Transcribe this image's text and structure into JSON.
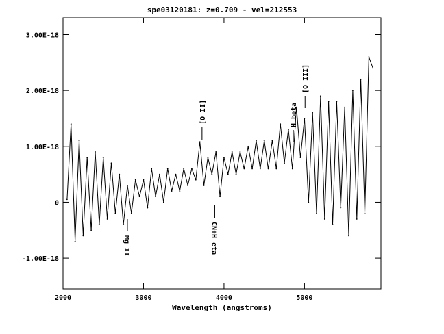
{
  "chart_data": {
    "type": "line",
    "title": "spe03120181: z=0.709 - vel=212553",
    "xlabel": "Wavelength (angstroms)",
    "ylabel": "",
    "xlim": [
      2000,
      5950
    ],
    "ylim": [
      -1.55e-18,
      3.3e-18
    ],
    "x_ticks": [
      {
        "value": 2000,
        "label": "2000"
      },
      {
        "value": 3000,
        "label": "3000"
      },
      {
        "value": 4000,
        "label": "4000"
      },
      {
        "value": 5000,
        "label": "5000"
      }
    ],
    "y_ticks": [
      {
        "value": 3e-18,
        "label": "3.00E-18"
      },
      {
        "value": 2e-18,
        "label": "2.00E-18"
      },
      {
        "value": 1e-18,
        "label": "1.00E-18"
      },
      {
        "value": 0,
        "label": "0"
      },
      {
        "value": -1e-18,
        "label": "-1.00E-18"
      }
    ],
    "grid": false,
    "series": [
      {
        "color": "#000000",
        "x": [
          2050,
          2100,
          2150,
          2200,
          2250,
          2300,
          2350,
          2400,
          2450,
          2500,
          2550,
          2600,
          2650,
          2700,
          2750,
          2800,
          2850,
          2900,
          2950,
          3000,
          3050,
          3100,
          3150,
          3200,
          3250,
          3300,
          3350,
          3400,
          3450,
          3500,
          3550,
          3600,
          3650,
          3700,
          3750,
          3800,
          3850,
          3900,
          3950,
          4000,
          4050,
          4100,
          4150,
          4200,
          4250,
          4300,
          4350,
          4400,
          4450,
          4500,
          4550,
          4600,
          4650,
          4700,
          4750,
          4800,
          4850,
          4900,
          4950,
          5000,
          5050,
          5100,
          5150,
          5200,
          5250,
          5300,
          5350,
          5400,
          5450,
          5500,
          5550,
          5600,
          5650,
          5700,
          5750,
          5800,
          5850
        ],
        "y": [
          5e-20,
          1.4e-18,
          -7e-19,
          1.1e-18,
          -6e-19,
          8e-19,
          -5e-19,
          9e-19,
          -4e-19,
          8e-19,
          -3e-19,
          7e-19,
          -2e-19,
          5e-19,
          -4e-19,
          3e-19,
          -2e-19,
          4e-19,
          1e-19,
          4e-19,
          -1e-19,
          6e-19,
          1e-19,
          5e-19,
          0,
          6e-19,
          2e-19,
          5e-19,
          2e-19,
          6e-19,
          3e-19,
          6e-19,
          4e-19,
          1.08e-18,
          3e-19,
          8e-19,
          5e-19,
          9e-19,
          1e-19,
          8e-19,
          5e-19,
          9e-19,
          5e-19,
          9e-19,
          6e-19,
          1e-18,
          6e-19,
          1.1e-18,
          6e-19,
          1.1e-18,
          6e-19,
          1.1e-18,
          6e-19,
          1.4e-18,
          7e-19,
          1.3e-18,
          6e-19,
          1.7e-18,
          8e-19,
          1.5e-18,
          0,
          1.6e-18,
          -2e-19,
          1.9e-18,
          -3e-19,
          1.8e-18,
          -4e-19,
          1.8e-18,
          -1e-19,
          1.7e-18,
          -6e-19,
          2e-18,
          -3e-19,
          2.2e-18,
          -2e-19,
          2.6e-18,
          2.4e-18
        ]
      }
    ],
    "annotations": [
      {
        "text": "Mg II",
        "x": 2800
      },
      {
        "text": "[O II]",
        "x": 3727
      },
      {
        "text": "CN+H eta",
        "x": 3885
      },
      {
        "text": "H beta",
        "x": 4861
      },
      {
        "text": "[O III]",
        "x": 5007
      }
    ]
  }
}
